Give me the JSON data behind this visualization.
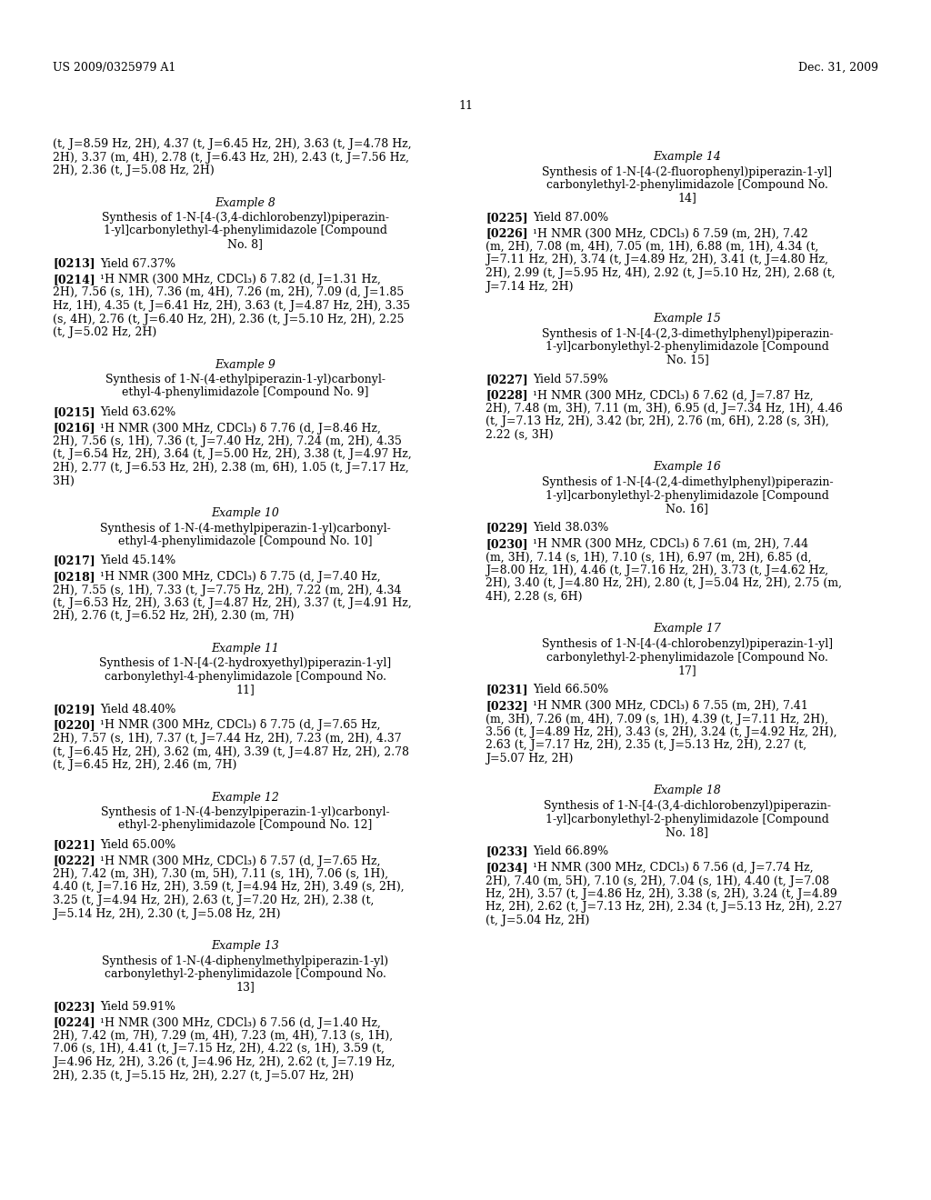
{
  "bg_color": "#ffffff",
  "header_left": "US 2009/0325979 A1",
  "header_right": "Dec. 31, 2009",
  "page_number": "11",
  "left_content": [
    {
      "type": "cont",
      "lines": [
        "(t, J=8.59 Hz, 2H), 4.37 (t, J=6.45 Hz, 2H), 3.63 (t, J=4.78 Hz,",
        "2H), 3.37 (m, 4H), 2.78 (t, J=6.43 Hz, 2H), 2.43 (t, J=7.56 Hz,",
        "2H), 2.36 (t, J=5.08 Hz, 2H)"
      ]
    },
    {
      "type": "ex_head",
      "text": "Example 8"
    },
    {
      "type": "ex_title",
      "lines": [
        "Synthesis of 1-N-[4-(3,4-dichlorobenzyl)piperazin-",
        "1-yl]carbonylethyl-4-phenylimidazole [Compound",
        "No. 8]"
      ]
    },
    {
      "type": "yield",
      "tag": "[0213]",
      "text": "Yield 67.37%"
    },
    {
      "type": "nmr",
      "tag": "[0214]",
      "lines": [
        "¹H NMR (300 MHz, CDCl₃) δ 7.82 (d, J=1.31 Hz,",
        "2H), 7.56 (s, 1H), 7.36 (m, 4H), 7.26 (m, 2H), 7.09 (d, J=1.85",
        "Hz, 1H), 4.35 (t, J=6.41 Hz, 2H), 3.63 (t, J=4.87 Hz, 2H), 3.35",
        "(s, 4H), 2.76 (t, J=6.40 Hz, 2H), 2.36 (t, J=5.10 Hz, 2H), 2.25",
        "(t, J=5.02 Hz, 2H)"
      ]
    },
    {
      "type": "ex_head",
      "text": "Example 9"
    },
    {
      "type": "ex_title",
      "lines": [
        "Synthesis of 1-N-(4-ethylpiperazin-1-yl)carbonyl-",
        "ethyl-4-phenylimidazole [Compound No. 9]"
      ]
    },
    {
      "type": "yield",
      "tag": "[0215]",
      "text": "Yield 63.62%"
    },
    {
      "type": "nmr",
      "tag": "[0216]",
      "lines": [
        "¹H NMR (300 MHz, CDCl₃) δ 7.76 (d, J=8.46 Hz,",
        "2H), 7.56 (s, 1H), 7.36 (t, J=7.40 Hz, 2H), 7.24 (m, 2H), 4.35",
        "(t, J=6.54 Hz, 2H), 3.64 (t, J=5.00 Hz, 2H), 3.38 (t, J=4.97 Hz,",
        "2H), 2.77 (t, J=6.53 Hz, 2H), 2.38 (m, 6H), 1.05 (t, J=7.17 Hz,",
        "3H)"
      ]
    },
    {
      "type": "ex_head",
      "text": "Example 10"
    },
    {
      "type": "ex_title",
      "lines": [
        "Synthesis of 1-N-(4-methylpiperazin-1-yl)carbonyl-",
        "ethyl-4-phenylimidazole [Compound No. 10]"
      ]
    },
    {
      "type": "yield",
      "tag": "[0217]",
      "text": "Yield 45.14%"
    },
    {
      "type": "nmr",
      "tag": "[0218]",
      "lines": [
        "¹H NMR (300 MHz, CDCl₃) δ 7.75 (d, J=7.40 Hz,",
        "2H), 7.55 (s, 1H), 7.33 (t, J=7.75 Hz, 2H), 7.22 (m, 2H), 4.34",
        "(t, J=6.53 Hz, 2H), 3.63 (t, J=4.87 Hz, 2H), 3.37 (t, J=4.91 Hz,",
        "2H), 2.76 (t, J=6.52 Hz, 2H), 2.30 (m, 7H)"
      ]
    },
    {
      "type": "ex_head",
      "text": "Example 11"
    },
    {
      "type": "ex_title",
      "lines": [
        "Synthesis of 1-N-[4-(2-hydroxyethyl)piperazin-1-yl]",
        "carbonylethyl-4-phenylimidazole [Compound No.",
        "11]"
      ]
    },
    {
      "type": "yield",
      "tag": "[0219]",
      "text": "Yield 48.40%"
    },
    {
      "type": "nmr",
      "tag": "[0220]",
      "lines": [
        "¹H NMR (300 MHz, CDCl₃) δ 7.75 (d, J=7.65 Hz,",
        "2H), 7.57 (s, 1H), 7.37 (t, J=7.44 Hz, 2H), 7.23 (m, 2H), 4.37",
        "(t, J=6.45 Hz, 2H), 3.62 (m, 4H), 3.39 (t, J=4.87 Hz, 2H), 2.78",
        "(t, J=6.45 Hz, 2H), 2.46 (m, 7H)"
      ]
    },
    {
      "type": "ex_head",
      "text": "Example 12"
    },
    {
      "type": "ex_title",
      "lines": [
        "Synthesis of 1-N-(4-benzylpiperazin-1-yl)carbonyl-",
        "ethyl-2-phenylimidazole [Compound No. 12]"
      ]
    },
    {
      "type": "yield",
      "tag": "[0221]",
      "text": "Yield 65.00%"
    },
    {
      "type": "nmr",
      "tag": "[0222]",
      "lines": [
        "¹H NMR (300 MHz, CDCl₃) δ 7.57 (d, J=7.65 Hz,",
        "2H), 7.42 (m, 3H), 7.30 (m, 5H), 7.11 (s, 1H), 7.06 (s, 1H),",
        "4.40 (t, J=7.16 Hz, 2H), 3.59 (t, J=4.94 Hz, 2H), 3.49 (s, 2H),",
        "3.25 (t, J=4.94 Hz, 2H), 2.63 (t, J=7.20 Hz, 2H), 2.38 (t,",
        "J=5.14 Hz, 2H), 2.30 (t, J=5.08 Hz, 2H)"
      ]
    },
    {
      "type": "ex_head",
      "text": "Example 13"
    },
    {
      "type": "ex_title",
      "lines": [
        "Synthesis of 1-N-(4-diphenylmethylpiperazin-1-yl)",
        "carbonylethyl-2-phenylimidazole [Compound No.",
        "13]"
      ]
    },
    {
      "type": "yield",
      "tag": "[0223]",
      "text": "Yield 59.91%"
    },
    {
      "type": "nmr",
      "tag": "[0224]",
      "lines": [
        "¹H NMR (300 MHz, CDCl₃) δ 7.56 (d, J=1.40 Hz,",
        "2H), 7.42 (m, 7H), 7.29 (m, 4H), 7.23 (m, 4H), 7.13 (s, 1H),",
        "7.06 (s, 1H), 4.41 (t, J=7.15 Hz, 2H), 4.22 (s, 1H), 3.59 (t,",
        "J=4.96 Hz, 2H), 3.26 (t, J=4.96 Hz, 2H), 2.62 (t, J=7.19 Hz,",
        "2H), 2.35 (t, J=5.15 Hz, 2H), 2.27 (t, J=5.07 Hz, 2H)"
      ]
    }
  ],
  "right_content": [
    {
      "type": "ex_head",
      "text": "Example 14"
    },
    {
      "type": "ex_title",
      "lines": [
        "Synthesis of 1-N-[4-(2-fluorophenyl)piperazin-1-yl]",
        "carbonylethyl-2-phenylimidazole [Compound No.",
        "14]"
      ]
    },
    {
      "type": "yield",
      "tag": "[0225]",
      "text": "Yield 87.00%"
    },
    {
      "type": "nmr",
      "tag": "[0226]",
      "lines": [
        "¹H NMR (300 MHz, CDCl₃) δ 7.59 (m, 2H), 7.42",
        "(m, 2H), 7.08 (m, 4H), 7.05 (m, 1H), 6.88 (m, 1H), 4.34 (t,",
        "J=7.11 Hz, 2H), 3.74 (t, J=4.89 Hz, 2H), 3.41 (t, J=4.80 Hz,",
        "2H), 2.99 (t, J=5.95 Hz, 4H), 2.92 (t, J=5.10 Hz, 2H), 2.68 (t,",
        "J=7.14 Hz, 2H)"
      ]
    },
    {
      "type": "ex_head",
      "text": "Example 15"
    },
    {
      "type": "ex_title",
      "lines": [
        "Synthesis of 1-N-[4-(2,3-dimethylphenyl)piperazin-",
        "1-yl]carbonylethyl-2-phenylimidazole [Compound",
        "No. 15]"
      ]
    },
    {
      "type": "yield",
      "tag": "[0227]",
      "text": "Yield 57.59%"
    },
    {
      "type": "nmr",
      "tag": "[0228]",
      "lines": [
        "¹H NMR (300 MHz, CDCl₃) δ 7.62 (d, J=7.87 Hz,",
        "2H), 7.48 (m, 3H), 7.11 (m, 3H), 6.95 (d, J=7.34 Hz, 1H), 4.46",
        "(t, J=7.13 Hz, 2H), 3.42 (br, 2H), 2.76 (m, 6H), 2.28 (s, 3H),",
        "2.22 (s, 3H)"
      ]
    },
    {
      "type": "ex_head",
      "text": "Example 16"
    },
    {
      "type": "ex_title",
      "lines": [
        "Synthesis of 1-N-[4-(2,4-dimethylphenyl)piperazin-",
        "1-yl]carbonylethyl-2-phenylimidazole [Compound",
        "No. 16]"
      ]
    },
    {
      "type": "yield",
      "tag": "[0229]",
      "text": "Yield 38.03%"
    },
    {
      "type": "nmr",
      "tag": "[0230]",
      "lines": [
        "¹H NMR (300 MHz, CDCl₃) δ 7.61 (m, 2H), 7.44",
        "(m, 3H), 7.14 (s, 1H), 7.10 (s, 1H), 6.97 (m, 2H), 6.85 (d,",
        "J=8.00 Hz, 1H), 4.46 (t, J=7.16 Hz, 2H), 3.73 (t, J=4.62 Hz,",
        "2H), 3.40 (t, J=4.80 Hz, 2H), 2.80 (t, J=5.04 Hz, 2H), 2.75 (m,",
        "4H), 2.28 (s, 6H)"
      ]
    },
    {
      "type": "ex_head",
      "text": "Example 17"
    },
    {
      "type": "ex_title",
      "lines": [
        "Synthesis of 1-N-[4-(4-chlorobenzyl)piperazin-1-yl]",
        "carbonylethyl-2-phenylimidazole [Compound No.",
        "17]"
      ]
    },
    {
      "type": "yield",
      "tag": "[0231]",
      "text": "Yield 66.50%"
    },
    {
      "type": "nmr",
      "tag": "[0232]",
      "lines": [
        "¹H NMR (300 MHz, CDCl₃) δ 7.55 (m, 2H), 7.41",
        "(m, 3H), 7.26 (m, 4H), 7.09 (s, 1H), 4.39 (t, J=7.11 Hz, 2H),",
        "3.56 (t, J=4.89 Hz, 2H), 3.43 (s, 2H), 3.24 (t, J=4.92 Hz, 2H),",
        "2.63 (t, J=7.17 Hz, 2H), 2.35 (t, J=5.13 Hz, 2H), 2.27 (t,",
        "J=5.07 Hz, 2H)"
      ]
    },
    {
      "type": "ex_head",
      "text": "Example 18"
    },
    {
      "type": "ex_title",
      "lines": [
        "Synthesis of 1-N-[4-(3,4-dichlorobenzyl)piperazin-",
        "1-yl]carbonylethyl-2-phenylimidazole [Compound",
        "No. 18]"
      ]
    },
    {
      "type": "yield",
      "tag": "[0233]",
      "text": "Yield 66.89%"
    },
    {
      "type": "nmr",
      "tag": "[0234]",
      "lines": [
        "¹H NMR (300 MHz, CDCl₃) δ 7.56 (d, J=7.74 Hz,",
        "2H), 7.40 (m, 5H), 7.10 (s, 2H), 7.04 (s, 1H), 4.40 (t, J=7.08",
        "Hz, 2H), 3.57 (t, J=4.86 Hz, 2H), 3.38 (s, 2H), 3.24 (t, J=4.89",
        "Hz, 2H), 2.62 (t, J=7.13 Hz, 2H), 2.34 (t, J=5.13 Hz, 2H), 2.27",
        "(t, J=5.04 Hz, 2H)"
      ]
    }
  ]
}
